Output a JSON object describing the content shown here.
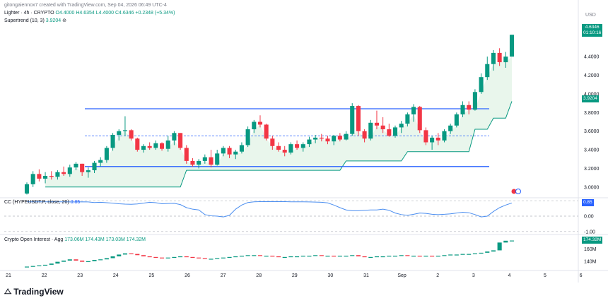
{
  "header": {
    "created_by": "gitongaiennox7 created with TradingView.com, Sep 04, 2026 06:49 UTC-4",
    "symbol": "Lighter · 4h · CRYPTO",
    "ohlc_o": "O4.4000",
    "ohlc_h": "H4.6354",
    "ohlc_l": "L4.4000",
    "ohlc_c": "C4.6346",
    "change": "+0.2348 (+5.34%)",
    "supertrend_label": "Supertrend (10, 3)",
    "supertrend_value": "3.9204",
    "supertrend_icon": "eye-off-icon"
  },
  "currency": "USD",
  "price_axis": {
    "ticks": [
      "4.4000",
      "4.2000",
      "4.0000",
      "3.8000",
      "3.6000",
      "3.4000",
      "3.2000",
      "3.0000"
    ],
    "last_price": "4.6346",
    "countdown": "01:10:16",
    "supertrend_tag": "3.9204"
  },
  "cc_pane": {
    "label": "CC (HYPEUSDT.P, close, 20)",
    "value": "0.85",
    "ticks": [
      "0.00",
      "-1.00"
    ],
    "tag": "0.85"
  },
  "oi_pane": {
    "label": "Crypto Open Interest · Agg",
    "values": "173.06M  174.43M  173.03M  174.32M",
    "ticks": [
      "160M",
      "140M"
    ],
    "tag": "174.32M"
  },
  "time_axis": [
    "21",
    "22",
    "23",
    "24",
    "25",
    "26",
    "27",
    "28",
    "29",
    "30",
    "31",
    "Sep",
    "2",
    "3",
    "4",
    "5",
    "6"
  ],
  "brand": "TradingView",
  "colors": {
    "up": "#089981",
    "down": "#f23645",
    "supertrend": "#089981",
    "supertrend_fill": "#e9f6ec",
    "range_line": "#2962ff",
    "cc_line": "#4b8ef0",
    "oi_bar": "#089981"
  },
  "chart_data": [
    {
      "type": "candlestick",
      "title": "Lighter · 4h · CRYPTO",
      "ylim": [
        2.9,
        4.75
      ],
      "x": [
        "21",
        "22",
        "23",
        "24",
        "25",
        "26",
        "27",
        "28",
        "29",
        "30",
        "31",
        "Sep",
        "2",
        "3",
        "4"
      ],
      "ohlc": [
        [
          2.93,
          3.05,
          2.92,
          3.03
        ],
        [
          3.03,
          3.17,
          3.0,
          3.14
        ],
        [
          3.14,
          3.19,
          3.06,
          3.09
        ],
        [
          3.09,
          3.16,
          3.04,
          3.12
        ],
        [
          3.12,
          3.17,
          3.08,
          3.11
        ],
        [
          3.11,
          3.18,
          3.08,
          3.16
        ],
        [
          3.16,
          3.22,
          3.12,
          3.14
        ],
        [
          3.14,
          3.24,
          3.11,
          3.21
        ],
        [
          3.21,
          3.27,
          3.18,
          3.25
        ],
        [
          3.25,
          3.25,
          3.12,
          3.16
        ],
        [
          3.16,
          3.21,
          3.1,
          3.18
        ],
        [
          3.18,
          3.28,
          3.15,
          3.26
        ],
        [
          3.26,
          3.32,
          3.22,
          3.29
        ],
        [
          3.29,
          3.44,
          3.26,
          3.42
        ],
        [
          3.42,
          3.58,
          3.39,
          3.56
        ],
        [
          3.56,
          3.62,
          3.5,
          3.6
        ],
        [
          3.6,
          3.76,
          3.55,
          3.61
        ],
        [
          3.61,
          3.62,
          3.5,
          3.52
        ],
        [
          3.52,
          3.53,
          3.38,
          3.4
        ],
        [
          3.4,
          3.46,
          3.37,
          3.44
        ],
        [
          3.44,
          3.48,
          3.4,
          3.42
        ],
        [
          3.42,
          3.5,
          3.4,
          3.47
        ],
        [
          3.47,
          3.48,
          3.39,
          3.41
        ],
        [
          3.41,
          3.55,
          3.38,
          3.5
        ],
        [
          3.5,
          3.6,
          3.45,
          3.58
        ],
        [
          3.58,
          3.58,
          3.4,
          3.42
        ],
        [
          3.42,
          3.45,
          3.25,
          3.28
        ],
        [
          3.28,
          3.31,
          3.22,
          3.24
        ],
        [
          3.24,
          3.3,
          3.2,
          3.28
        ],
        [
          3.28,
          3.35,
          3.25,
          3.32
        ],
        [
          3.32,
          3.4,
          3.21,
          3.24
        ],
        [
          3.24,
          3.4,
          3.23,
          3.36
        ],
        [
          3.36,
          3.44,
          3.33,
          3.42
        ],
        [
          3.42,
          3.44,
          3.31,
          3.35
        ],
        [
          3.35,
          3.4,
          3.3,
          3.38
        ],
        [
          3.38,
          3.48,
          3.36,
          3.45
        ],
        [
          3.45,
          3.65,
          3.43,
          3.62
        ],
        [
          3.62,
          3.72,
          3.58,
          3.7
        ],
        [
          3.7,
          3.77,
          3.64,
          3.67
        ],
        [
          3.67,
          3.68,
          3.5,
          3.52
        ],
        [
          3.52,
          3.55,
          3.4,
          3.44
        ],
        [
          3.44,
          3.48,
          3.38,
          3.4
        ],
        [
          3.4,
          3.44,
          3.33,
          3.37
        ],
        [
          3.37,
          3.48,
          3.35,
          3.46
        ],
        [
          3.46,
          3.5,
          3.4,
          3.42
        ],
        [
          3.42,
          3.48,
          3.38,
          3.46
        ],
        [
          3.46,
          3.54,
          3.43,
          3.51
        ],
        [
          3.51,
          3.56,
          3.47,
          3.53
        ],
        [
          3.53,
          3.57,
          3.49,
          3.52
        ],
        [
          3.52,
          3.55,
          3.46,
          3.49
        ],
        [
          3.49,
          3.56,
          3.45,
          3.55
        ],
        [
          3.55,
          3.58,
          3.49,
          3.51
        ],
        [
          3.51,
          3.6,
          3.5,
          3.57
        ],
        [
          3.57,
          3.9,
          3.55,
          3.87
        ],
        [
          3.87,
          3.88,
          3.55,
          3.6
        ],
        [
          3.6,
          3.62,
          3.48,
          3.52
        ],
        [
          3.52,
          3.72,
          3.5,
          3.69
        ],
        [
          3.69,
          3.82,
          3.62,
          3.66
        ],
        [
          3.66,
          3.75,
          3.58,
          3.62
        ],
        [
          3.62,
          3.68,
          3.54,
          3.55
        ],
        [
          3.55,
          3.66,
          3.53,
          3.64
        ],
        [
          3.64,
          3.71,
          3.58,
          3.68
        ],
        [
          3.68,
          3.8,
          3.65,
          3.78
        ],
        [
          3.78,
          3.89,
          3.7,
          3.86
        ],
        [
          3.86,
          3.87,
          3.58,
          3.61
        ],
        [
          3.61,
          3.64,
          3.45,
          3.48
        ],
        [
          3.48,
          3.55,
          3.4,
          3.53
        ],
        [
          3.53,
          3.58,
          3.45,
          3.5
        ],
        [
          3.5,
          3.62,
          3.48,
          3.6
        ],
        [
          3.6,
          3.68,
          3.57,
          3.66
        ],
        [
          3.66,
          3.8,
          3.64,
          3.78
        ],
        [
          3.78,
          3.92,
          3.75,
          3.88
        ],
        [
          3.88,
          3.92,
          3.78,
          3.83
        ],
        [
          3.83,
          4.05,
          3.82,
          4.02
        ],
        [
          4.02,
          4.22,
          4.0,
          4.18
        ],
        [
          4.18,
          4.4,
          4.15,
          4.32
        ],
        [
          4.32,
          4.47,
          4.25,
          4.44
        ],
        [
          4.44,
          4.49,
          4.3,
          4.34
        ],
        [
          4.34,
          4.45,
          4.28,
          4.4
        ],
        [
          4.4,
          4.6354,
          4.4,
          4.6346
        ]
      ],
      "supertrend": [
        [
          0,
          3.0,
          "up"
        ],
        [
          10,
          3.0,
          "up"
        ],
        [
          25,
          3.0,
          "up"
        ],
        [
          26,
          3.18,
          "up"
        ],
        [
          50,
          3.18,
          "up"
        ],
        [
          52,
          3.28,
          "up"
        ],
        [
          61,
          3.28,
          "up"
        ],
        [
          62,
          3.38,
          "up"
        ],
        [
          72,
          3.38,
          "up"
        ],
        [
          73,
          3.62,
          "up"
        ],
        [
          76,
          3.74,
          "up"
        ],
        [
          79,
          3.9204,
          "up"
        ]
      ],
      "range_lines": [
        3.84,
        3.22
      ],
      "midline": 3.55
    },
    {
      "type": "line",
      "title": "CC (HYPEUSDT.P, close, 20)",
      "ylim": [
        -1.1,
        1.1
      ],
      "values": [
        0.93,
        0.93,
        0.93,
        0.93,
        0.93,
        0.93,
        0.93,
        0.92,
        0.92,
        0.93,
        0.92,
        0.88,
        0.9,
        0.87,
        0.84,
        0.8,
        0.78,
        0.77,
        0.79,
        0.84,
        0.9,
        0.87,
        0.8,
        0.82,
        0.83,
        0.75,
        0.55,
        0.45,
        0.4,
        0.1,
        0.02,
        0.0,
        -0.05,
        0.05,
        0.45,
        0.72,
        0.88,
        0.93,
        0.94,
        0.94,
        0.94,
        0.94,
        0.94,
        0.93,
        0.93,
        0.93,
        0.92,
        0.91,
        0.9,
        0.86,
        0.72,
        0.55,
        0.4,
        0.35,
        0.35,
        0.38,
        0.4,
        0.4,
        0.45,
        0.38,
        0.2,
        0.1,
        0.05,
        0.12,
        0.2,
        0.18,
        0.12,
        0.1,
        0.12,
        0.15,
        0.2,
        0.25,
        0.22,
        0.1,
        -0.05,
        0.0,
        0.3,
        0.55,
        0.72,
        0.85
      ]
    },
    {
      "type": "bar",
      "title": "Crypto Open Interest · Agg",
      "ylim": [
        128,
        182
      ],
      "values": [
        131,
        132,
        133,
        134,
        136,
        139,
        141,
        143,
        141,
        139,
        140,
        142,
        143,
        145,
        148,
        151,
        153,
        152,
        150,
        148,
        147,
        146,
        145,
        146,
        147,
        148,
        147,
        146,
        145,
        144,
        144,
        145,
        146,
        147,
        148,
        149,
        150,
        150,
        149,
        149,
        148,
        147,
        147,
        148,
        148,
        149,
        149,
        150,
        149,
        149,
        148,
        149,
        149,
        150,
        148,
        147,
        147,
        148,
        148,
        149,
        149,
        150,
        149,
        149,
        148,
        149,
        148,
        149,
        150,
        151,
        151,
        152,
        152,
        153,
        154,
        156,
        158,
        171,
        174,
        174.32
      ]
    }
  ]
}
